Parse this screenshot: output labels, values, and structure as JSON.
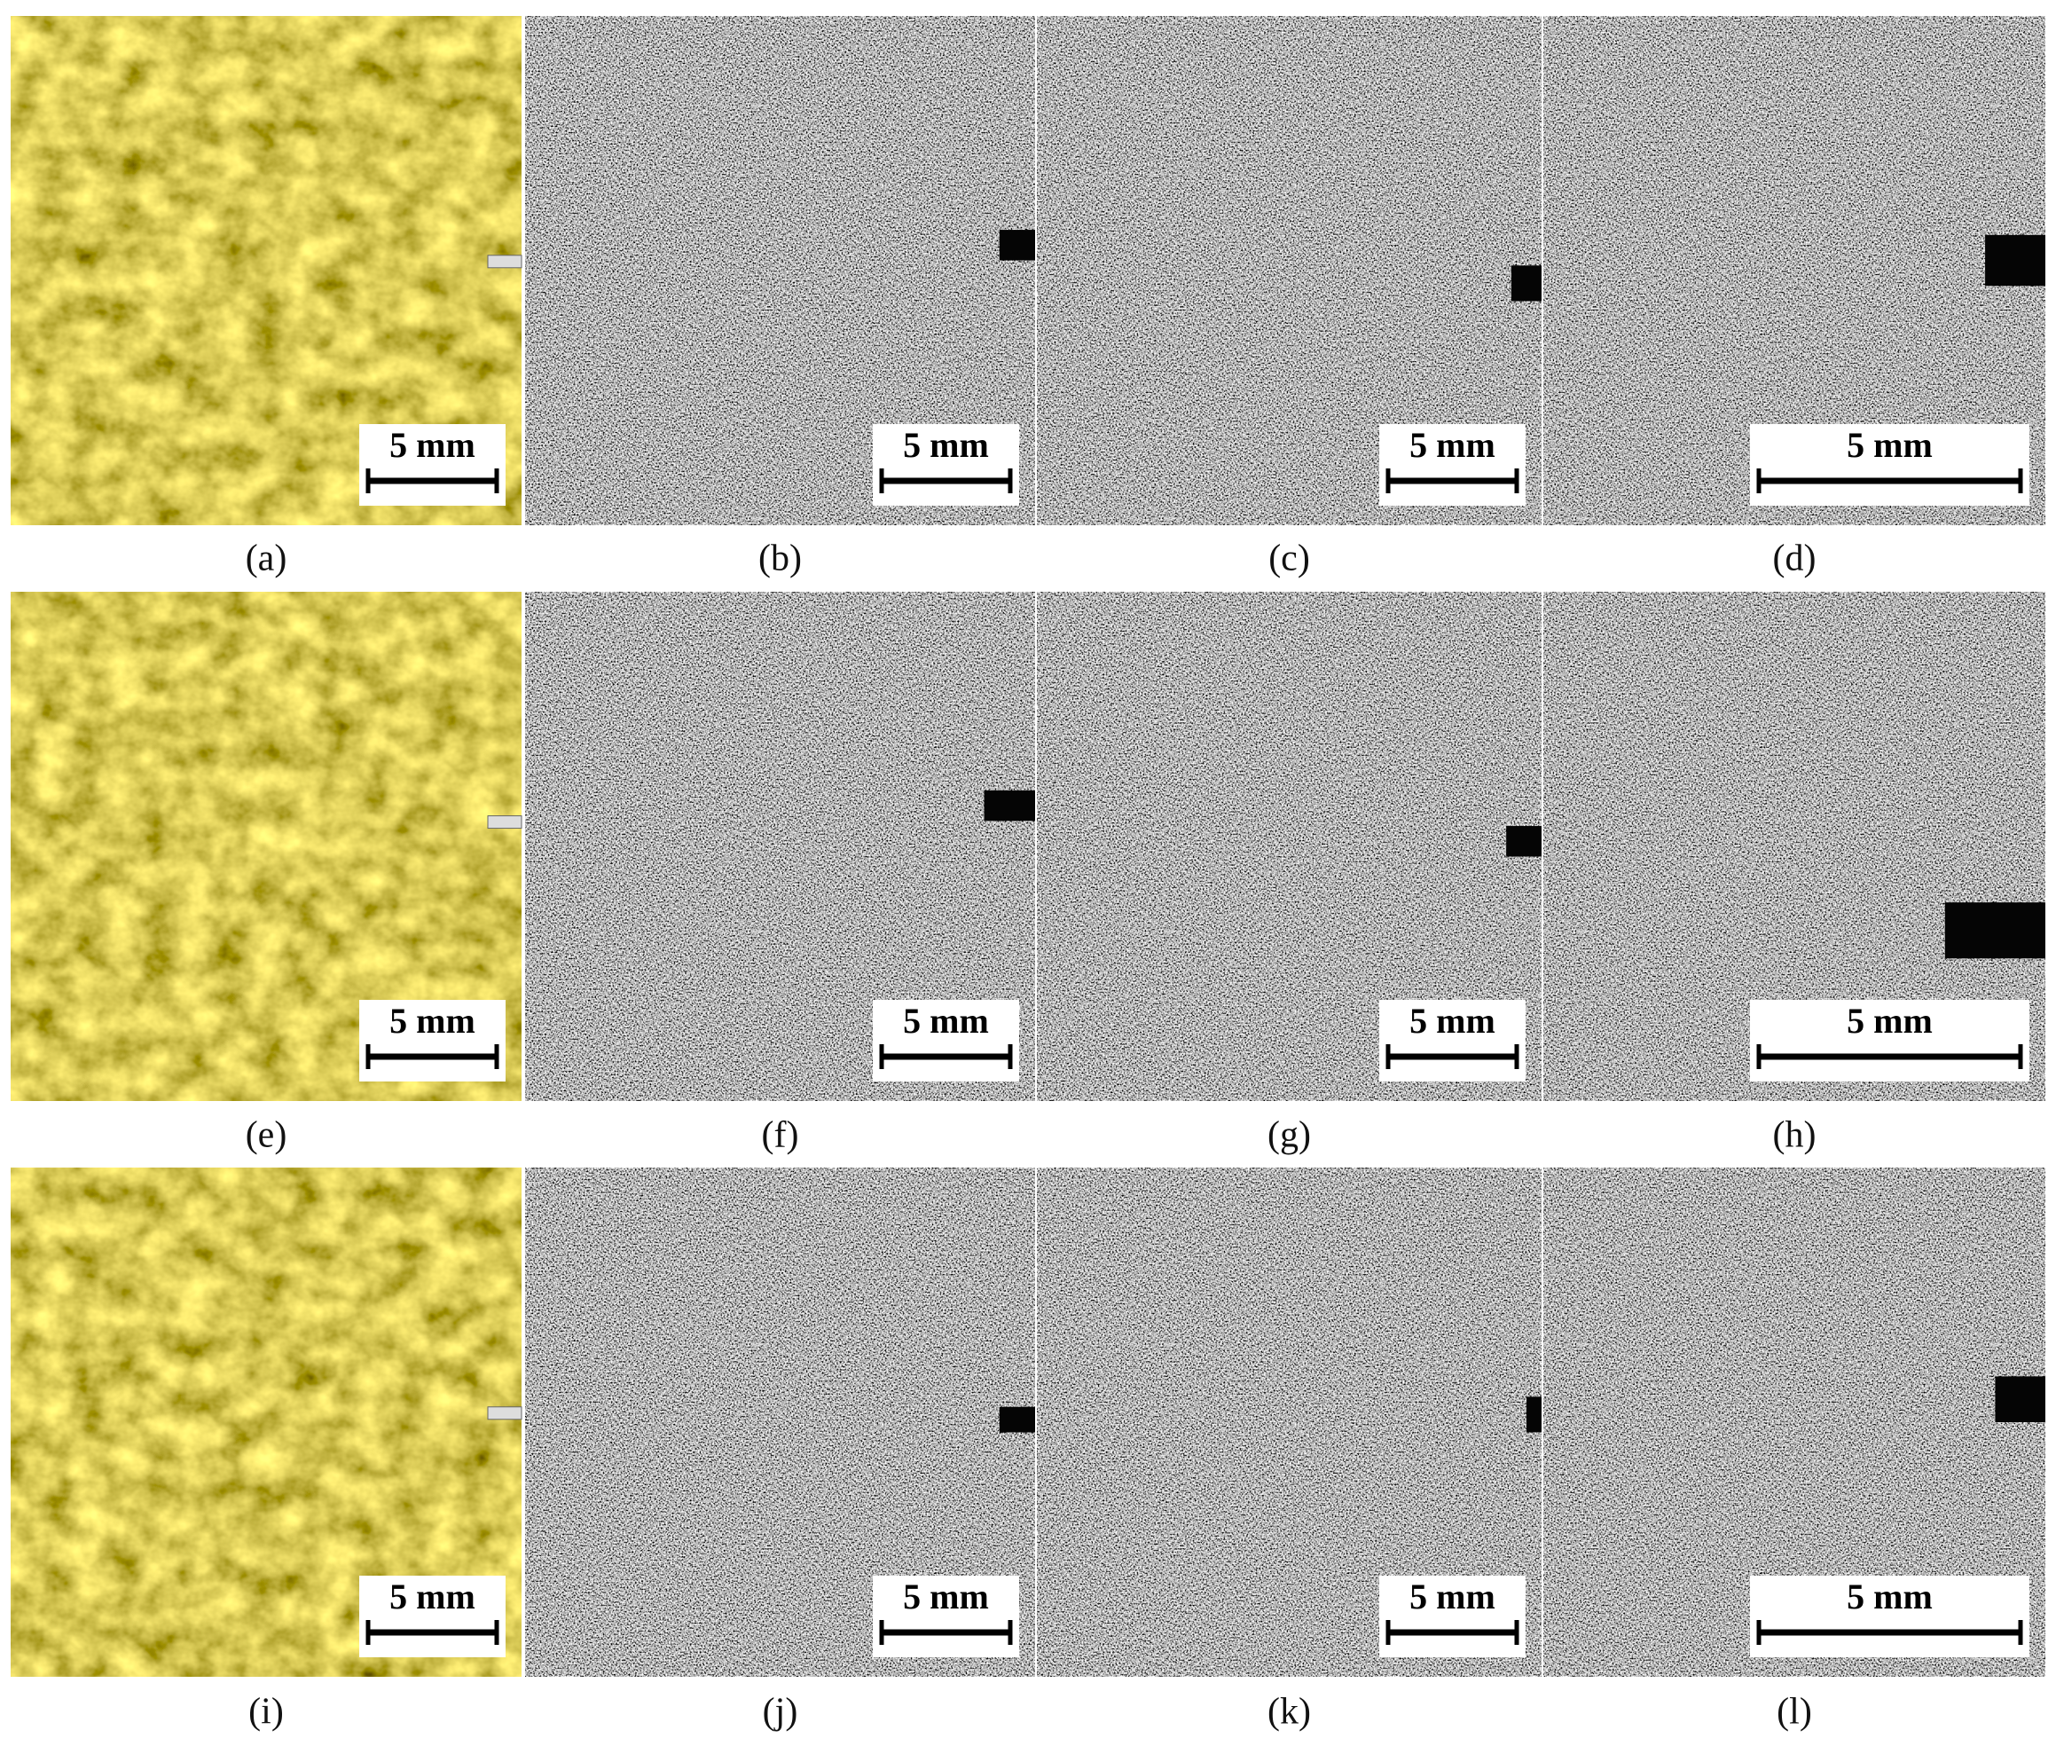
{
  "panels": [
    {
      "label": "(a)",
      "scale_bar": "5 mm"
    },
    {
      "label": "(b)",
      "scale_bar": "5 mm"
    },
    {
      "label": "(c)",
      "scale_bar": "5 mm"
    },
    {
      "label": "(d)",
      "scale_bar": "5 mm"
    },
    {
      "label": "(e)",
      "scale_bar": "5 mm"
    },
    {
      "label": "(f)",
      "scale_bar": "5 mm"
    },
    {
      "label": "(g)",
      "scale_bar": "5 mm"
    },
    {
      "label": "(h)",
      "scale_bar": "5 mm"
    },
    {
      "label": "(i)",
      "scale_bar": "5 mm"
    },
    {
      "label": "(j)",
      "scale_bar": "5 mm"
    },
    {
      "label": "(k)",
      "scale_bar": "5 mm"
    },
    {
      "label": "(l)",
      "scale_bar": "5 mm"
    }
  ]
}
